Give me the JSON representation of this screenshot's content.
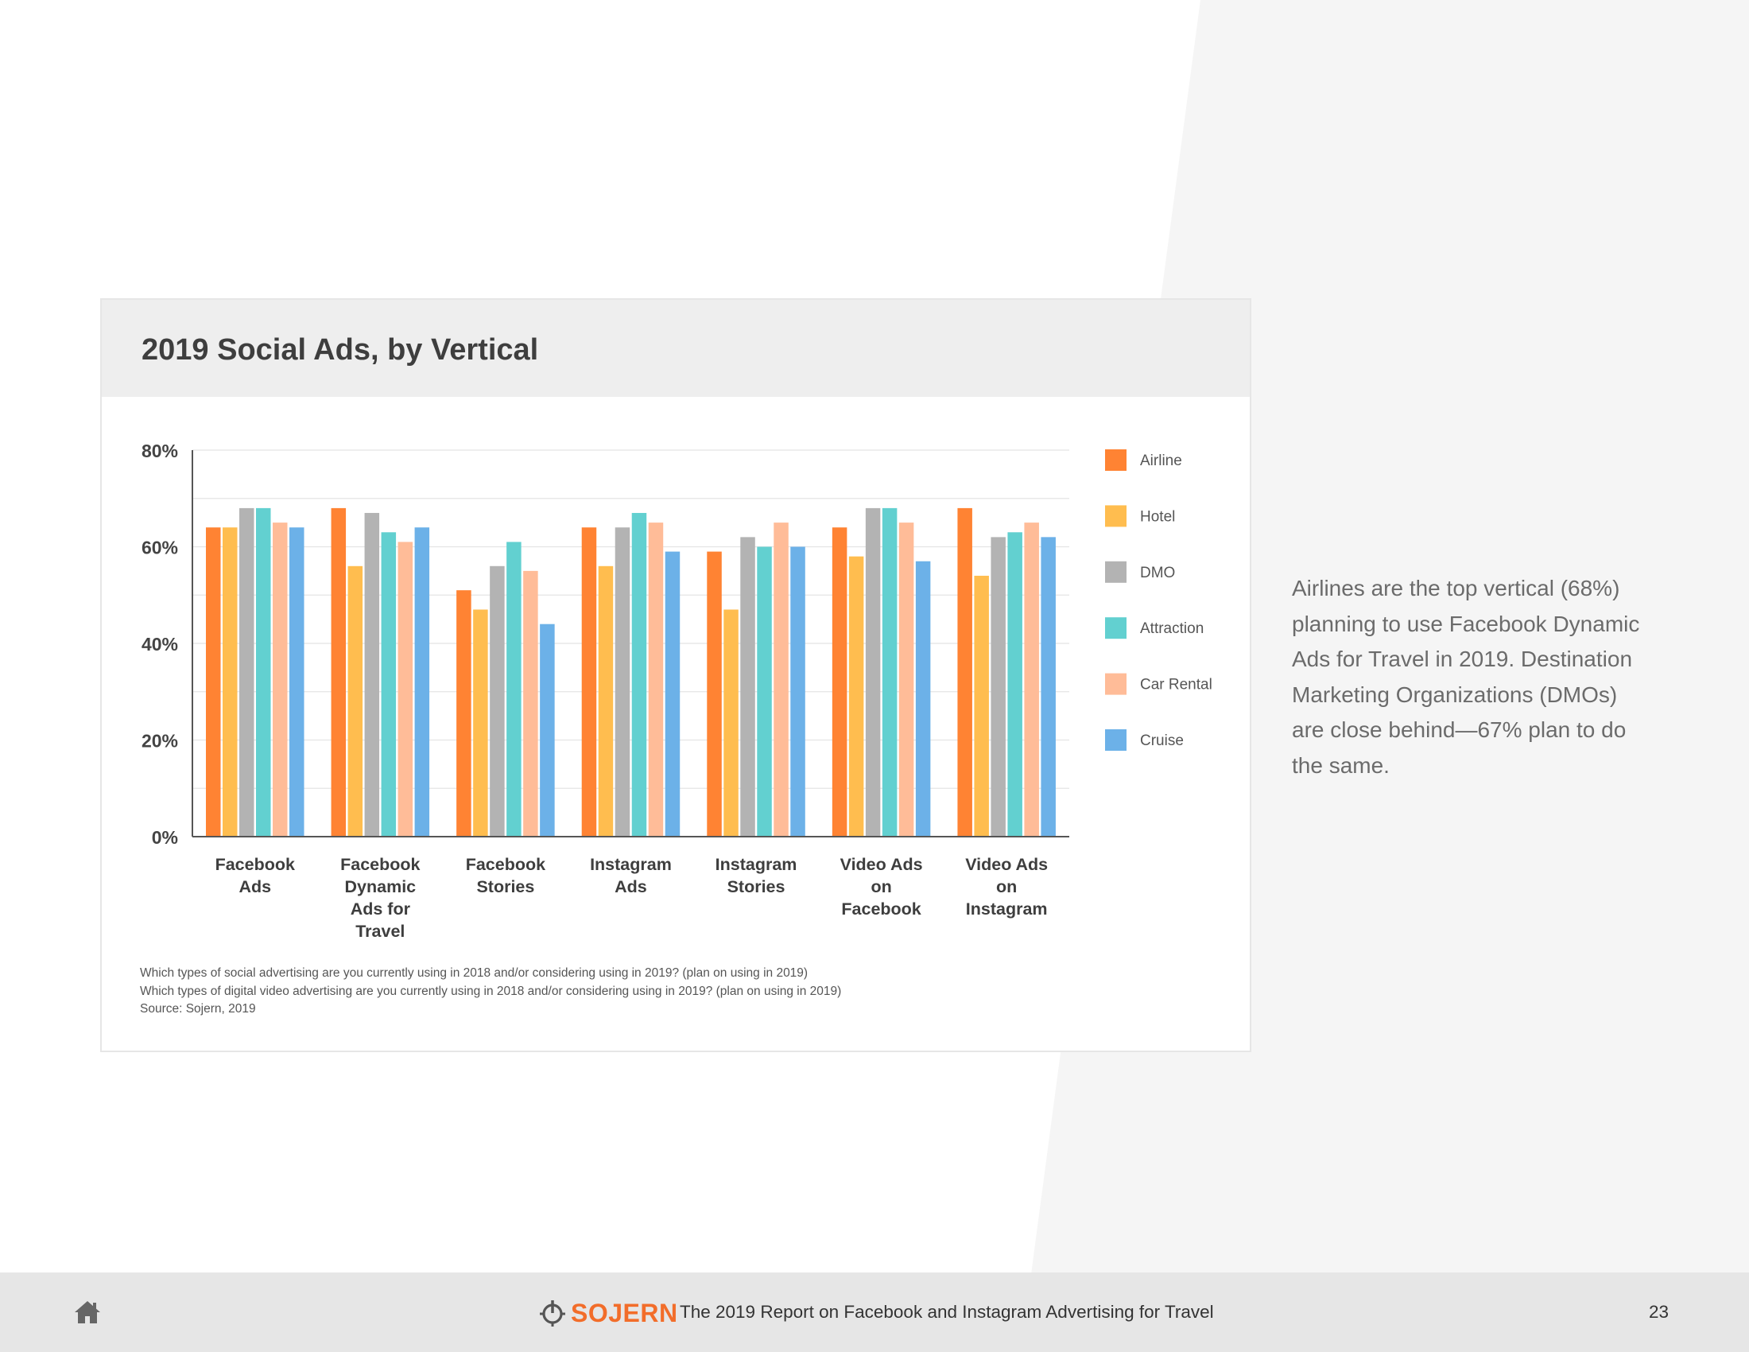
{
  "card": {
    "title": "2019 Social Ads, by Vertical"
  },
  "chart_data": {
    "type": "bar",
    "title": "2019 Social Ads, by Vertical",
    "xlabel": "",
    "ylabel": "",
    "ylim": [
      0,
      80
    ],
    "grid": true,
    "legend_position": "right",
    "y_ticks": [
      {
        "value": 0,
        "label": "0%"
      },
      {
        "value": 20,
        "label": "20%"
      },
      {
        "value": 40,
        "label": "40%"
      },
      {
        "value": 60,
        "label": "60%"
      },
      {
        "value": 80,
        "label": "80%"
      }
    ],
    "categories": [
      [
        "Facebook",
        "Ads"
      ],
      [
        "Facebook",
        "Dynamic",
        "Ads for",
        "Travel"
      ],
      [
        "Facebook",
        "Stories"
      ],
      [
        "Instagram",
        "Ads"
      ],
      [
        "Instagram",
        "Stories"
      ],
      [
        "Video Ads",
        "on",
        "Facebook"
      ],
      [
        "Video Ads",
        "on",
        "Instagram"
      ]
    ],
    "series": [
      {
        "name": "Airline",
        "color": "#ff8333",
        "values": [
          64,
          68,
          51,
          64,
          59,
          64,
          68
        ]
      },
      {
        "name": "Hotel",
        "color": "#ffbd4f",
        "values": [
          64,
          56,
          47,
          56,
          47,
          58,
          54
        ]
      },
      {
        "name": "DMO",
        "color": "#b3b3b3",
        "values": [
          68,
          67,
          56,
          64,
          62,
          68,
          62
        ]
      },
      {
        "name": "Attraction",
        "color": "#62d0d0",
        "values": [
          68,
          63,
          61,
          67,
          60,
          68,
          63
        ]
      },
      {
        "name": "Car Rental",
        "color": "#ffbc98",
        "values": [
          65,
          61,
          55,
          65,
          65,
          65,
          65
        ]
      },
      {
        "name": "Cruise",
        "color": "#6cb1e8",
        "values": [
          64,
          64,
          44,
          59,
          60,
          57,
          62
        ]
      }
    ]
  },
  "notes": {
    "line1": "Which types of social advertising are you currently using in 2018 and/or considering using in 2019? (plan on using in 2019)",
    "line2": "Which types of digital video advertising are you currently using in 2018 and/or considering using in 2019? (plan on using in 2019)",
    "source": "Source: Sojern, 2019"
  },
  "insight": "Airlines are the top vertical (68%) planning to use Facebook Dynamic Ads for Travel in 2019. Destination Marketing Organizations (DMOs) are close behind—67% plan to do the same.",
  "footer": {
    "home_icon": "home-icon",
    "brand_icon": "sojern-logo-icon",
    "brand_name": "SOJERN",
    "brand_color": "#f26d2a",
    "report_title": "The 2019 Report on Facebook and Instagram Advertising for Travel",
    "page_number": "23"
  }
}
